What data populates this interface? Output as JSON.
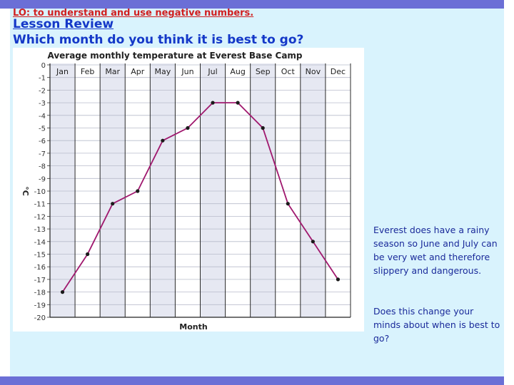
{
  "slide": {
    "objective": "LO: to understand and use negative numbers.",
    "heading": "Lesson Review",
    "question": "Which month do you think it is best to go?",
    "note_rain": "Everest does have a rainy season so June and July can be very wet and therefore slippery and dangerous.",
    "note_question": "Does this change your minds about when is best to go?"
  },
  "colors": {
    "frame": "#6b6fd6",
    "background": "#d9f3fd",
    "objective_text": "#d02020",
    "heading_text": "#1438c8",
    "note_text": "#1a2a9a",
    "line": "#a0186e",
    "grid_shade": "#e6e8f2"
  },
  "chart_data": {
    "type": "line",
    "title": "Average monthly temperature at Everest Base Camp",
    "xlabel": "Month",
    "ylabel": "°C",
    "categories": [
      "Jan",
      "Feb",
      "Mar",
      "Apr",
      "May",
      "Jun",
      "Jul",
      "Aug",
      "Sep",
      "Oct",
      "Nov",
      "Dec"
    ],
    "values": [
      -18,
      -15,
      -11,
      -10,
      -6,
      -5,
      -3,
      -3,
      -5,
      -11,
      -14,
      -17
    ],
    "ylim": [
      -20,
      0
    ],
    "yticks": [
      "0",
      "-1",
      "-2",
      "-3",
      "-4",
      "-5",
      "-6",
      "-7",
      "-8",
      "-9",
      "-10",
      "-11",
      "-12",
      "-13",
      "-14",
      "-15",
      "-16",
      "-17",
      "-18",
      "-19",
      "-20"
    ],
    "grid": true
  }
}
